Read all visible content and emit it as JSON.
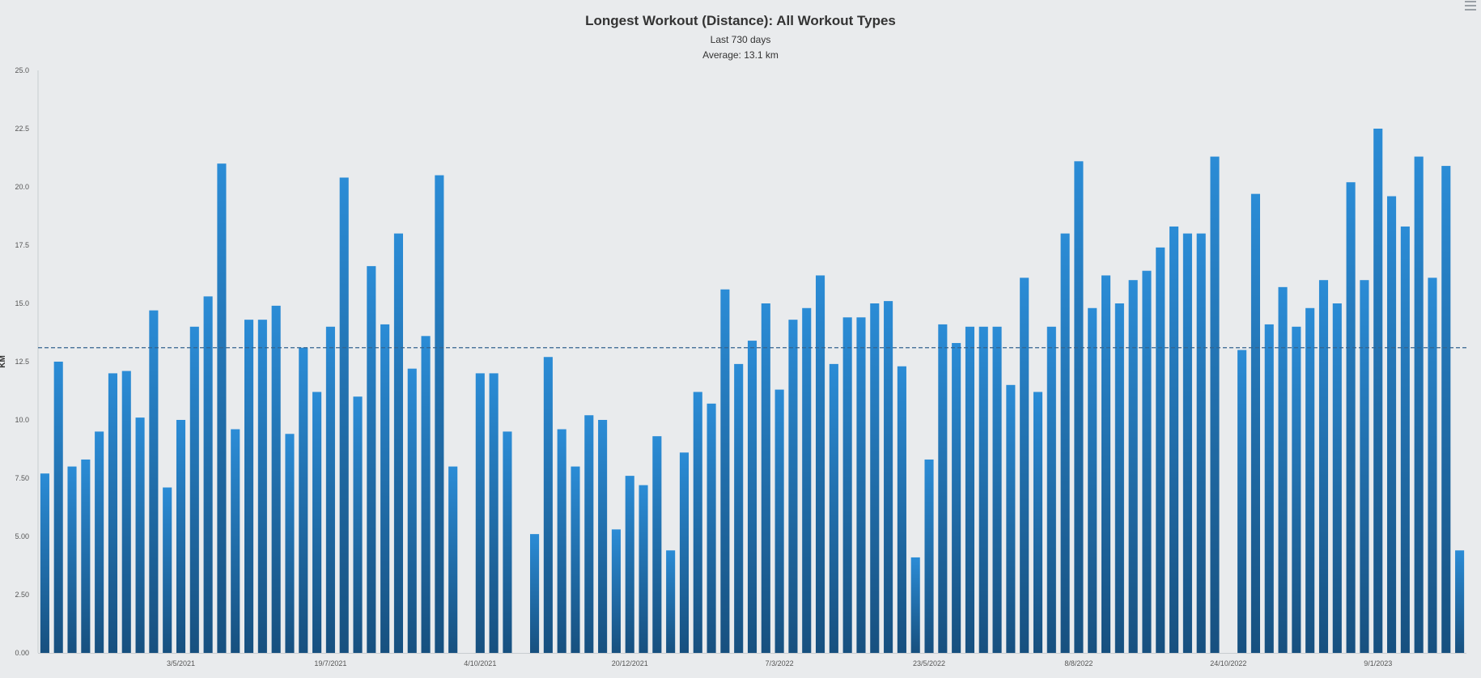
{
  "chart_data": {
    "type": "bar",
    "title": "Longest Workout (Distance): All Workout Types",
    "subtitle": "Last 730 days",
    "average_label": "Average: 13.1 km",
    "average": 13.1,
    "ylabel": "KM",
    "ylim": [
      0,
      25
    ],
    "y_ticks": [
      "0.00",
      "2.50",
      "5.00",
      "7.50",
      "10.0",
      "12.5",
      "15.0",
      "17.5",
      "20.0",
      "22.5",
      "25.0"
    ],
    "x_ticks": [
      {
        "label": "3/5/2021",
        "index": 10
      },
      {
        "label": "19/7/2021",
        "index": 21
      },
      {
        "label": "4/10/2021",
        "index": 32
      },
      {
        "label": "20/12/2021",
        "index": 43
      },
      {
        "label": "7/3/2022",
        "index": 54
      },
      {
        "label": "23/5/2022",
        "index": 65
      },
      {
        "label": "8/8/2022",
        "index": 76
      },
      {
        "label": "24/10/2022",
        "index": 87
      },
      {
        "label": "9/1/2023",
        "index": 98
      }
    ],
    "values": [
      7.7,
      12.5,
      8.0,
      8.3,
      9.5,
      12.0,
      12.1,
      10.1,
      14.7,
      7.1,
      10.0,
      14.0,
      15.3,
      21.0,
      9.6,
      14.3,
      14.3,
      14.9,
      9.4,
      13.1,
      11.2,
      14.0,
      20.4,
      11.0,
      16.6,
      14.1,
      18.0,
      12.2,
      13.6,
      20.5,
      8.0,
      null,
      12.0,
      12.0,
      9.5,
      null,
      5.1,
      12.7,
      9.6,
      8.0,
      10.2,
      10.0,
      5.3,
      7.6,
      7.2,
      9.3,
      4.4,
      8.6,
      11.2,
      10.7,
      15.6,
      12.4,
      13.4,
      15.0,
      11.3,
      14.3,
      14.8,
      16.2,
      12.4,
      14.4,
      14.4,
      15.0,
      15.1,
      12.3,
      4.1,
      8.3,
      14.1,
      13.3,
      14.0,
      14.0,
      14.0,
      11.5,
      16.1,
      11.2,
      14.0,
      18.0,
      21.1,
      14.8,
      16.2,
      15.0,
      16.0,
      16.4,
      17.4,
      18.3,
      18.0,
      18.0,
      21.3,
      null,
      13.0,
      19.7,
      14.1,
      15.7,
      14.0,
      14.8,
      16.0,
      15.0,
      20.2,
      16.0,
      22.5,
      19.6,
      18.3,
      21.3,
      16.1,
      20.9,
      4.4
    ],
    "grid": false,
    "legend": "none",
    "bar_color_top": "#2b8cd6",
    "bar_color_bottom": "#17507f",
    "average_line_color": "#33648f"
  }
}
